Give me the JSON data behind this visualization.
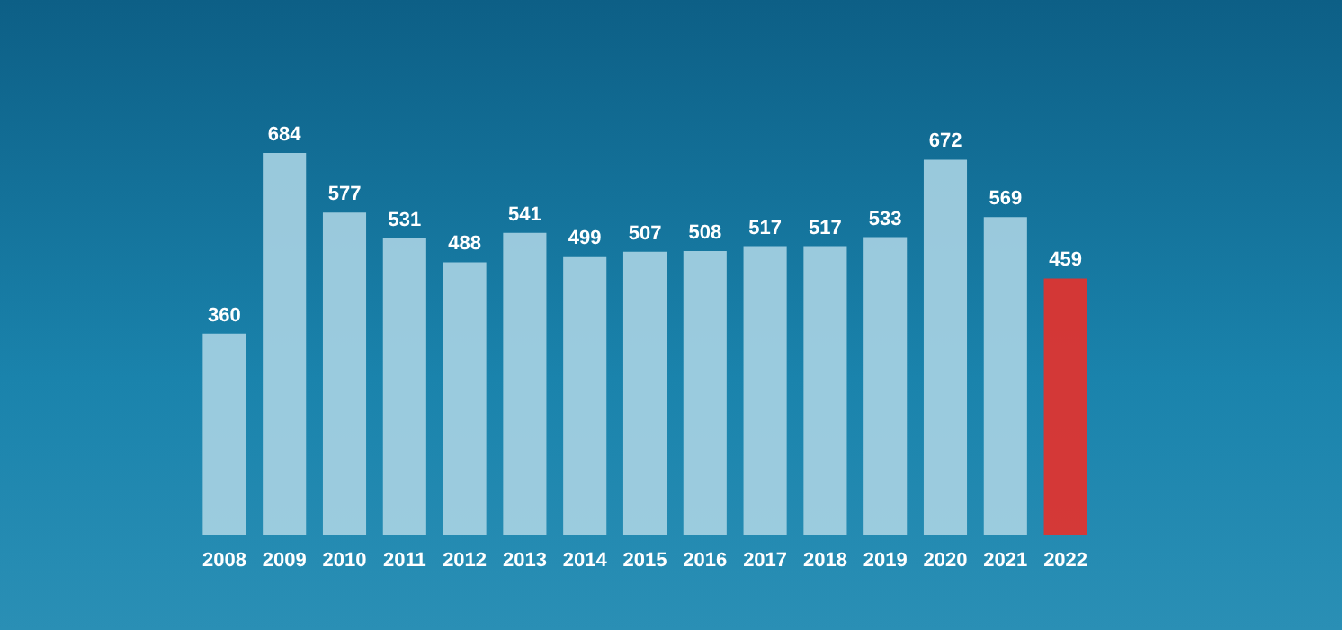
{
  "chart_data": {
    "type": "bar",
    "categories": [
      "2008",
      "2009",
      "2010",
      "2011",
      "2012",
      "2013",
      "2014",
      "2015",
      "2016",
      "2017",
      "2018",
      "2019",
      "2020",
      "2021",
      "2022"
    ],
    "values": [
      360,
      684,
      577,
      531,
      488,
      541,
      499,
      507,
      508,
      517,
      517,
      533,
      672,
      569,
      459
    ],
    "colors": [
      "#a9d3e3",
      "#a9d3e3",
      "#a9d3e3",
      "#a9d3e3",
      "#a9d3e3",
      "#a9d3e3",
      "#a9d3e3",
      "#a9d3e3",
      "#a9d3e3",
      "#a9d3e3",
      "#a9d3e3",
      "#a9d3e3",
      "#a9d3e3",
      "#a9d3e3",
      "#e8302a"
    ],
    "data_labels": true
  }
}
